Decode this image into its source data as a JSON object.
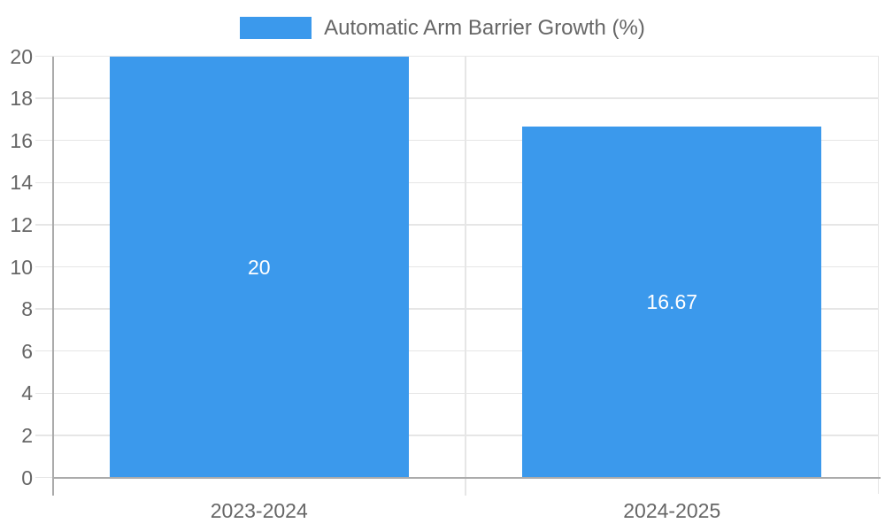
{
  "legend": {
    "label": "Automatic Arm Barrier Growth (%)"
  },
  "colors": {
    "bar": "#3B99EC",
    "axis_line": "#ABABAB",
    "grid_line": "#E6E6E6",
    "tick_text": "#666666",
    "legend_text": "#666666",
    "value_text": "#FFFFFF",
    "background": "#FFFFFF"
  },
  "chart_data": {
    "type": "bar",
    "title": "Automatic Arm Barrier Growth (%)",
    "categories": [
      "2023-2024",
      "2024-2025"
    ],
    "series": [
      {
        "name": "Automatic Arm Barrier Growth (%)",
        "values": [
          20,
          16.67
        ]
      }
    ],
    "value_labels": [
      "20",
      "16.67"
    ],
    "xlabel": "",
    "ylabel": "",
    "ylim": [
      0,
      20
    ],
    "ytick_step": 2,
    "yticks": [
      0,
      2,
      4,
      6,
      8,
      10,
      12,
      14,
      16,
      18,
      20
    ],
    "grid": true,
    "legend_position": "top",
    "value_label_position": "center-of-bar"
  }
}
